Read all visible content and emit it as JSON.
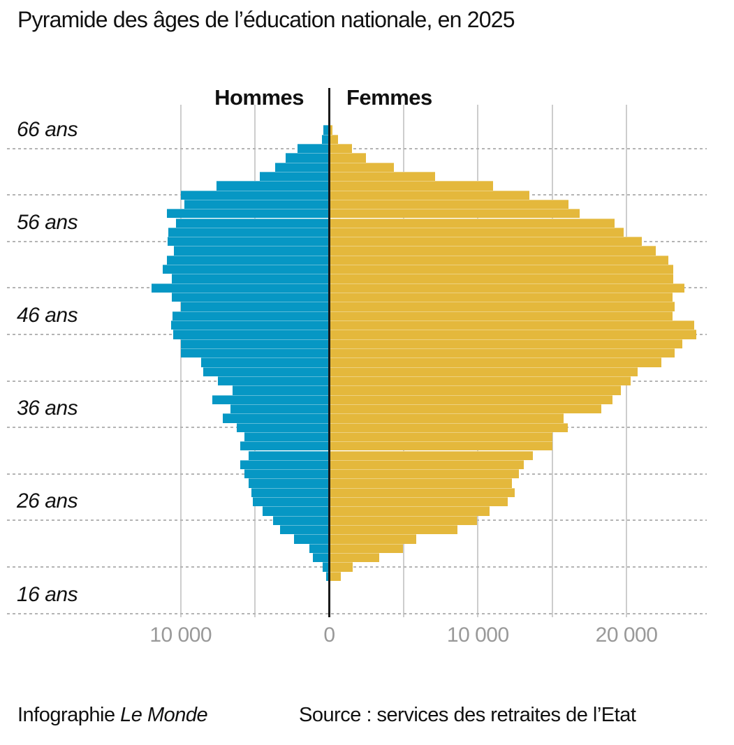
{
  "title": "Pyramide des âges de l’éducation nationale, en 2025",
  "legend": {
    "left_label": "Hommes",
    "right_label": "Femmes"
  },
  "footer": {
    "credit_prefix": "Infographie ",
    "credit_brand": "Le Monde",
    "source": "Source : services des retraites de l’Etat"
  },
  "colors": {
    "men": "#0697c4",
    "women": "#e4b83c",
    "center_axis": "#1a1a1a",
    "dotted_grid": "#b4b4b4",
    "vertical_grid": "#cdcdcd",
    "tick_text": "#999999",
    "text": "#111111"
  },
  "chart_data": {
    "type": "bar",
    "subtype": "population-pyramid",
    "title": "Pyramide des âges de l’éducation nationale, en 2025",
    "xlabel": "",
    "ylabel": "âge (ans)",
    "x_axis": {
      "ticks": [
        {
          "value": -10000,
          "label": "10 000"
        },
        {
          "value": 0,
          "label": "0"
        },
        {
          "value": 10000,
          "label": "10 000"
        },
        {
          "value": 20000,
          "label": "20 000"
        }
      ],
      "gridline_values": [
        -10000,
        -5000,
        5000,
        10000,
        15000,
        20000
      ],
      "range": [
        -13500,
        26800
      ]
    },
    "y_axis": {
      "labeled_ages": [
        66,
        56,
        46,
        36,
        26,
        16
      ],
      "label_suffix": " ans",
      "gridline_ages": [
        66,
        61,
        56,
        51,
        46,
        41,
        36,
        31,
        26,
        21,
        16
      ],
      "age_range_shown": [
        16,
        68
      ]
    },
    "legend_position": "top-center",
    "grid": {
      "horizontal": "dotted",
      "vertical": "solid-light"
    },
    "ages": [
      68,
      67,
      66,
      65,
      64,
      63,
      62,
      61,
      60,
      59,
      58,
      57,
      56,
      55,
      54,
      53,
      52,
      51,
      50,
      49,
      48,
      47,
      46,
      45,
      44,
      43,
      42,
      41,
      40,
      39,
      38,
      37,
      36,
      35,
      34,
      33,
      32,
      31,
      30,
      29,
      28,
      27,
      26,
      25,
      24,
      23,
      22,
      21,
      20
    ],
    "series": [
      {
        "name": "Hommes",
        "side": "left",
        "values": [
          410,
          490,
          2150,
          2960,
          3640,
          4680,
          7600,
          9980,
          9740,
          10910,
          10320,
          10840,
          10890,
          10480,
          10950,
          11220,
          10600,
          11970,
          10600,
          9990,
          10570,
          10660,
          10490,
          9980,
          9980,
          8640,
          8480,
          7510,
          6530,
          7870,
          6660,
          7150,
          6240,
          5720,
          6000,
          5420,
          6000,
          5730,
          5420,
          5230,
          5150,
          4500,
          3800,
          3330,
          2380,
          1360,
          1120,
          430,
          230
        ]
      },
      {
        "name": "Femmes",
        "side": "right",
        "values": [
          190,
          580,
          1520,
          2460,
          4340,
          7100,
          11030,
          13460,
          16120,
          16870,
          19220,
          19800,
          21050,
          21970,
          22830,
          23160,
          23160,
          23920,
          23090,
          23250,
          23090,
          24580,
          24710,
          23750,
          23250,
          22360,
          20770,
          20300,
          19640,
          19070,
          18290,
          15750,
          16060,
          15000,
          15010,
          13690,
          13090,
          12780,
          12300,
          12500,
          12000,
          10790,
          9960,
          8640,
          5840,
          4940,
          3350,
          1590,
          760
        ]
      }
    ]
  }
}
